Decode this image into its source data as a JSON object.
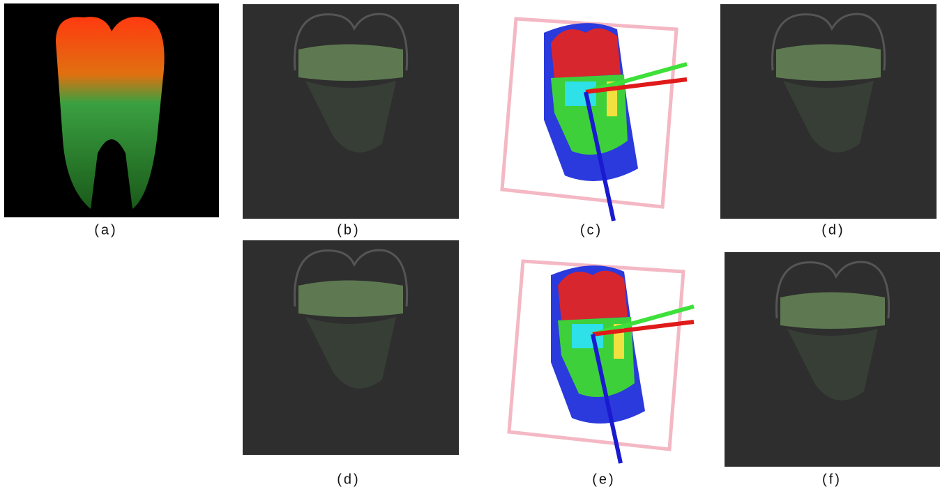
{
  "panels": [
    {
      "label": "(a)"
    },
    {
      "label": "(b)"
    },
    {
      "label": "(c)"
    },
    {
      "label": "(d)"
    },
    {
      "label": "(d)"
    },
    {
      "label": "(e)"
    },
    {
      "label": "(f)"
    }
  ]
}
